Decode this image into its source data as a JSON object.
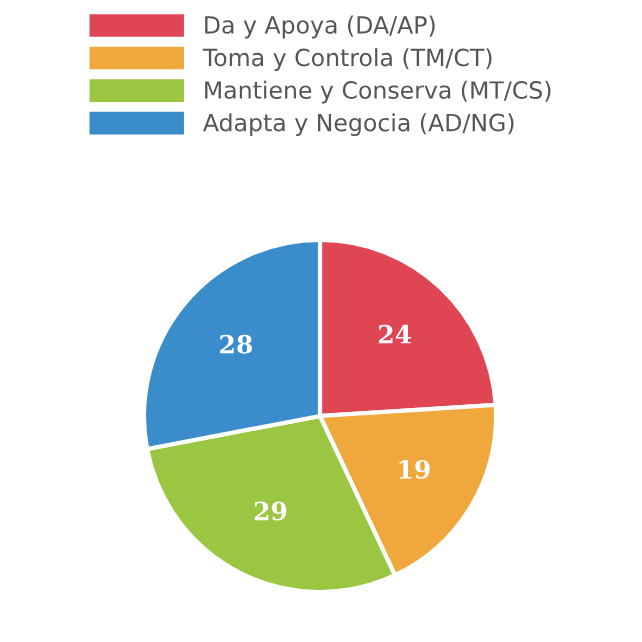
{
  "chart_data": {
    "type": "pie",
    "categories": [
      "Da y Apoya (DA/AP)",
      "Toma y Controla (TM/CT)",
      "Mantiene y Conserva (MT/CS)",
      "Adapta y Negocia (AD/NG)"
    ],
    "values": [
      24,
      19,
      29,
      28
    ],
    "colors": [
      "#e04553",
      "#f0a83c",
      "#9bc642",
      "#3a8ccb"
    ],
    "data_labels": true,
    "legend": "top"
  }
}
